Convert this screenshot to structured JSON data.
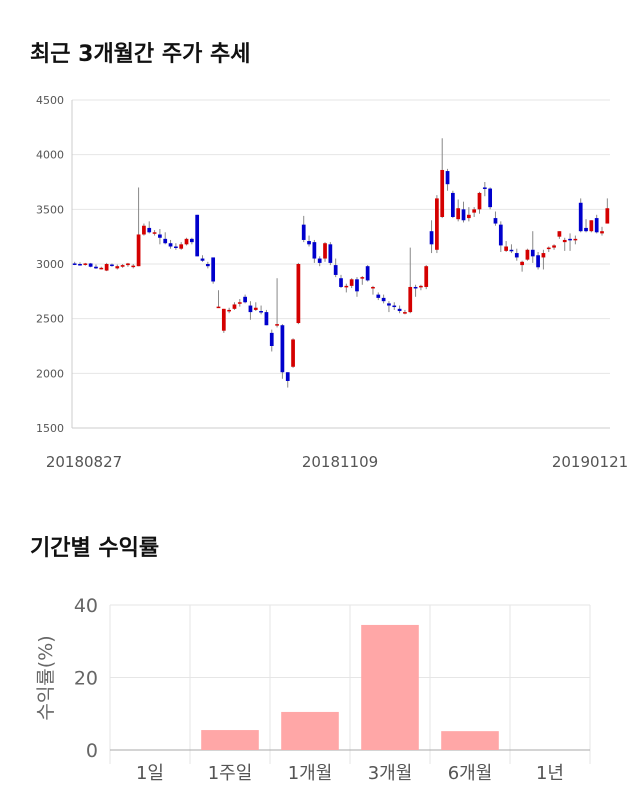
{
  "sections": {
    "price_title": "최근 3개월간 주가 추세",
    "returns_title": "기간별 수익률"
  },
  "colors": {
    "up": "#d40000",
    "down": "#0000cc",
    "bar": "#ffa7a7",
    "grid": "#e6e6e6",
    "axis": "#cccccc"
  },
  "chart_data": [
    {
      "type": "candlestick",
      "title": "최근 3개월간 주가 추세",
      "ylim": [
        1500,
        4500
      ],
      "yticks": [
        1500,
        2000,
        2500,
        3000,
        3500,
        4000,
        4500
      ],
      "date_labels": [
        "20180827",
        "20181109",
        "20190121"
      ],
      "grid": true,
      "candles": [
        [
          3005,
          3020,
          2990,
          3000
        ],
        [
          3000,
          3015,
          2985,
          2995
        ],
        [
          2995,
          3010,
          2985,
          3005
        ],
        [
          3005,
          3010,
          2970,
          2975
        ],
        [
          2975,
          2995,
          2955,
          2960
        ],
        [
          2960,
          2975,
          2950,
          2965
        ],
        [
          2940,
          3010,
          2935,
          3000
        ],
        [
          2995,
          3005,
          2975,
          2985
        ],
        [
          2960,
          2995,
          2950,
          2980
        ],
        [
          2975,
          3000,
          2965,
          2990
        ],
        [
          2990,
          3010,
          2975,
          3005
        ],
        [
          2980,
          3000,
          2960,
          2985
        ],
        [
          2980,
          3700,
          2980,
          3270
        ],
        [
          3270,
          3370,
          3260,
          3350
        ],
        [
          3330,
          3390,
          3280,
          3290
        ],
        [
          3280,
          3310,
          3260,
          3290
        ],
        [
          3270,
          3320,
          3180,
          3240
        ],
        [
          3230,
          3290,
          3180,
          3190
        ],
        [
          3190,
          3220,
          3140,
          3160
        ],
        [
          3160,
          3190,
          3130,
          3150
        ],
        [
          3140,
          3200,
          3130,
          3180
        ],
        [
          3180,
          3240,
          3170,
          3230
        ],
        [
          3230,
          3240,
          3180,
          3200
        ],
        [
          3450,
          3450,
          3070,
          3070
        ],
        [
          3050,
          3080,
          3020,
          3030
        ],
        [
          3000,
          3020,
          2960,
          2980
        ],
        [
          3060,
          3060,
          2820,
          2840
        ],
        [
          2610,
          2760,
          2600,
          2610
        ],
        [
          2390,
          2590,
          2370,
          2590
        ],
        [
          2570,
          2600,
          2550,
          2580
        ],
        [
          2590,
          2650,
          2580,
          2630
        ],
        [
          2640,
          2680,
          2610,
          2650
        ],
        [
          2700,
          2720,
          2640,
          2650
        ],
        [
          2620,
          2660,
          2490,
          2560
        ],
        [
          2580,
          2650,
          2570,
          2600
        ],
        [
          2570,
          2620,
          2540,
          2560
        ],
        [
          2560,
          2580,
          2440,
          2440
        ],
        [
          2370,
          2400,
          2200,
          2250
        ],
        [
          2440,
          2870,
          2420,
          2450
        ],
        [
          2440,
          2450,
          1950,
          2010
        ],
        [
          2010,
          2010,
          1870,
          1930
        ],
        [
          2060,
          2320,
          2050,
          2310
        ],
        [
          2460,
          3010,
          2450,
          3000
        ],
        [
          3360,
          3440,
          3200,
          3220
        ],
        [
          3210,
          3260,
          3160,
          3180
        ],
        [
          3200,
          3220,
          3010,
          3050
        ],
        [
          3050,
          3070,
          2980,
          3010
        ],
        [
          3050,
          3200,
          3020,
          3190
        ],
        [
          3180,
          3200,
          2990,
          3010
        ],
        [
          2990,
          3050,
          2880,
          2900
        ],
        [
          2870,
          2900,
          2780,
          2790
        ],
        [
          2790,
          2820,
          2740,
          2800
        ],
        [
          2800,
          2870,
          2780,
          2860
        ],
        [
          2860,
          2880,
          2700,
          2750
        ],
        [
          2880,
          2890,
          2810,
          2880
        ],
        [
          2980,
          2990,
          2840,
          2850
        ],
        [
          2780,
          2800,
          2720,
          2790
        ],
        [
          2720,
          2740,
          2670,
          2690
        ],
        [
          2690,
          2720,
          2640,
          2660
        ],
        [
          2640,
          2660,
          2560,
          2620
        ],
        [
          2620,
          2650,
          2580,
          2610
        ],
        [
          2590,
          2620,
          2550,
          2570
        ],
        [
          2550,
          2580,
          2540,
          2560
        ],
        [
          2560,
          3150,
          2550,
          2790
        ],
        [
          2790,
          2810,
          2700,
          2780
        ],
        [
          2790,
          2810,
          2760,
          2800
        ],
        [
          2790,
          2990,
          2770,
          2980
        ],
        [
          3300,
          3400,
          3100,
          3180
        ],
        [
          3130,
          3630,
          3100,
          3600
        ],
        [
          3430,
          4150,
          3420,
          3860
        ],
        [
          3850,
          3870,
          3670,
          3730
        ],
        [
          3650,
          3670,
          3420,
          3430
        ],
        [
          3410,
          3590,
          3390,
          3510
        ],
        [
          3500,
          3570,
          3380,
          3400
        ],
        [
          3420,
          3520,
          3390,
          3450
        ],
        [
          3470,
          3520,
          3430,
          3500
        ],
        [
          3500,
          3660,
          3460,
          3650
        ],
        [
          3700,
          3750,
          3620,
          3690
        ],
        [
          3690,
          3700,
          3500,
          3520
        ],
        [
          3420,
          3480,
          3350,
          3370
        ],
        [
          3360,
          3390,
          3110,
          3170
        ],
        [
          3120,
          3210,
          3110,
          3160
        ],
        [
          3130,
          3180,
          3100,
          3120
        ],
        [
          3100,
          3140,
          3030,
          3060
        ],
        [
          2990,
          3030,
          2930,
          3020
        ],
        [
          3040,
          3140,
          3030,
          3130
        ],
        [
          3130,
          3300,
          3010,
          3070
        ],
        [
          3080,
          3110,
          2950,
          2970
        ],
        [
          3060,
          3130,
          2950,
          3100
        ],
        [
          3150,
          3160,
          3110,
          3150
        ],
        [
          3150,
          3180,
          3130,
          3170
        ],
        [
          3250,
          3300,
          3230,
          3300
        ],
        [
          3200,
          3240,
          3120,
          3220
        ],
        [
          3230,
          3280,
          3120,
          3220
        ],
        [
          3220,
          3260,
          3180,
          3230
        ],
        [
          3560,
          3600,
          3290,
          3300
        ],
        [
          3330,
          3410,
          3290,
          3300
        ],
        [
          3300,
          3400,
          3290,
          3400
        ],
        [
          3420,
          3450,
          3280,
          3290
        ],
        [
          3280,
          3340,
          3260,
          3300
        ],
        [
          3370,
          3600,
          3370,
          3510
        ]
      ]
    },
    {
      "type": "bar",
      "title": "기간별 수익률",
      "ylabel": "수익률(%)",
      "ylim": [
        0,
        40
      ],
      "yticks": [
        0,
        20,
        40
      ],
      "grid": true,
      "categories": [
        "1일",
        "1주일",
        "1개월",
        "3개월",
        "6개월",
        "1년"
      ],
      "values": [
        0,
        5.5,
        10.5,
        34.5,
        5.2,
        0
      ]
    }
  ]
}
